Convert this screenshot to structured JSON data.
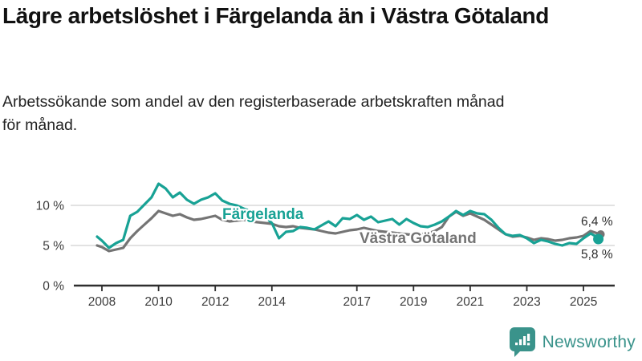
{
  "title": "Lägre arbetslöshet i Färgelanda än i Västra Götaland",
  "subtitle": {
    "line1": "Arbetssökande som andel av den registerbaserade arbetskraften månad",
    "line2": "för månad."
  },
  "footer": {
    "brand": "Newsworthy"
  },
  "colors": {
    "fargelanda": "#18a295",
    "vastra_gotaland": "#747474",
    "grid": "#d8d8d8",
    "axis": "#2e2e2e",
    "tick_label": "#3c3c3c",
    "end_label": "#2e2e2e",
    "brand": "#3a938b"
  },
  "chart_data": {
    "type": "line",
    "title": "Lägre arbetslöshet i Färgelanda än i Västra Götaland",
    "subtitle": "Arbetssökande som andel av den registerbaserade arbetskraften månad för månad.",
    "unit": "%",
    "grid": true,
    "legend_position": "inline-labels",
    "xlim": [
      2007.7,
      2026.2
    ],
    "ylim": [
      0,
      13.5
    ],
    "x_ticks": [
      {
        "year": 2008,
        "label": "2008"
      },
      {
        "year": 2010,
        "label": "2010"
      },
      {
        "year": 2012,
        "label": "2012"
      },
      {
        "year": 2014,
        "label": "2014"
      },
      {
        "year": 2017,
        "label": "2017"
      },
      {
        "year": 2019,
        "label": "2019"
      },
      {
        "year": 2021,
        "label": "2021"
      },
      {
        "year": 2023,
        "label": "2023"
      },
      {
        "year": 2025,
        "label": "2025"
      }
    ],
    "y_ticks": [
      {
        "value": 0,
        "label": "0 %"
      },
      {
        "value": 5,
        "label": "5 %"
      },
      {
        "value": 10,
        "label": "10 %"
      }
    ],
    "x": [
      2007.83,
      2008.0,
      2008.25,
      2008.5,
      2008.75,
      2009.0,
      2009.25,
      2009.5,
      2009.75,
      2010.0,
      2010.25,
      2010.5,
      2010.75,
      2011.0,
      2011.25,
      2011.5,
      2011.75,
      2012.0,
      2012.25,
      2012.5,
      2012.75,
      2013.0,
      2013.25,
      2013.5,
      2013.75,
      2014.0,
      2014.25,
      2014.5,
      2014.75,
      2015.0,
      2015.25,
      2015.5,
      2015.75,
      2016.0,
      2016.25,
      2016.5,
      2016.75,
      2017.0,
      2017.25,
      2017.5,
      2017.75,
      2018.0,
      2018.25,
      2018.5,
      2018.75,
      2019.0,
      2019.25,
      2019.5,
      2019.75,
      2020.0,
      2020.25,
      2020.5,
      2020.75,
      2021.0,
      2021.25,
      2021.5,
      2021.75,
      2022.0,
      2022.25,
      2022.5,
      2022.75,
      2023.0,
      2023.25,
      2023.5,
      2023.75,
      2024.0,
      2024.25,
      2024.5,
      2024.75,
      2025.0,
      2025.25,
      2025.5,
      2025.58
    ],
    "series": [
      {
        "name": "Färgelanda",
        "color_key": "fargelanda",
        "end_label": "5,8 %",
        "end_value": 5.8,
        "values": [
          6.1,
          5.6,
          4.7,
          5.3,
          5.7,
          8.7,
          9.2,
          10.1,
          11.0,
          12.7,
          12.1,
          11.0,
          11.6,
          10.7,
          10.2,
          10.7,
          11.0,
          11.5,
          10.6,
          10.2,
          10.0,
          9.6,
          9.3,
          9.0,
          8.6,
          7.8,
          5.9,
          6.7,
          6.8,
          7.3,
          7.2,
          7.0,
          7.5,
          8.0,
          7.4,
          8.4,
          8.3,
          8.8,
          8.2,
          8.6,
          7.9,
          8.1,
          8.3,
          7.6,
          8.3,
          7.8,
          7.4,
          7.3,
          7.6,
          8.0,
          8.6,
          9.3,
          8.8,
          9.3,
          9.0,
          8.9,
          8.2,
          7.2,
          6.4,
          6.2,
          6.3,
          5.9,
          5.3,
          5.7,
          5.5,
          5.2,
          5.0,
          5.3,
          5.2,
          5.9,
          6.5,
          6.0,
          5.8
        ]
      },
      {
        "name": "Västra Götaland",
        "color_key": "vastra_gotaland",
        "end_label": "6,4 %",
        "end_value": 6.4,
        "values": [
          5.0,
          4.8,
          4.3,
          4.5,
          4.7,
          5.9,
          6.8,
          7.6,
          8.4,
          9.3,
          9.0,
          8.7,
          8.9,
          8.5,
          8.2,
          8.3,
          8.5,
          8.7,
          8.2,
          8.0,
          8.1,
          8.2,
          8.0,
          7.9,
          7.8,
          7.7,
          7.4,
          7.3,
          7.4,
          7.2,
          7.1,
          7.0,
          6.8,
          6.6,
          6.5,
          6.7,
          6.9,
          7.0,
          7.2,
          7.0,
          6.8,
          6.7,
          6.6,
          6.5,
          6.4,
          6.3,
          6.4,
          6.5,
          6.8,
          7.3,
          8.6,
          9.2,
          8.7,
          9.0,
          8.6,
          8.2,
          7.6,
          7.0,
          6.4,
          6.1,
          6.2,
          6.0,
          5.7,
          5.9,
          5.8,
          5.6,
          5.7,
          5.9,
          6.0,
          6.2,
          6.8,
          6.5,
          6.4
        ]
      }
    ]
  }
}
